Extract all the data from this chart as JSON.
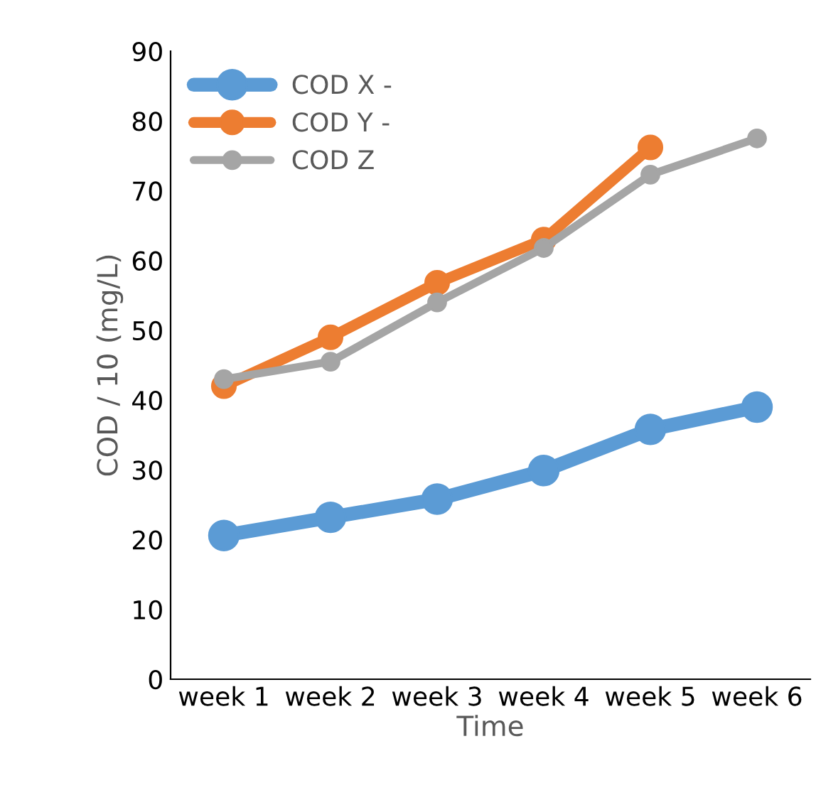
{
  "chart_data": {
    "type": "line",
    "xlabel": "Time",
    "ylabel": "COD / 10 (mg/L)",
    "categories": [
      "week 1",
      "week 2",
      "week 3",
      "week 4",
      "week 5",
      "week 6"
    ],
    "series": [
      {
        "name": "COD X -",
        "color": "#5b9bd5",
        "values": [
          20.6,
          23.2,
          25.8,
          29.9,
          35.8,
          39
        ]
      },
      {
        "name": "COD Y -",
        "color": "#ed7d31",
        "values": [
          42,
          49,
          56.8,
          63,
          76.2,
          null
        ]
      },
      {
        "name": "COD Z",
        "color": "#a5a5a5",
        "values": [
          43,
          45.5,
          54,
          61.8,
          72.3,
          77.5
        ]
      }
    ],
    "ylim": [
      0,
      90
    ],
    "yticks": [
      0,
      10,
      20,
      30,
      40,
      50,
      60,
      70,
      80,
      90
    ],
    "grid": false,
    "legend": "top left",
    "marker": "circle",
    "line_style": "solid"
  }
}
